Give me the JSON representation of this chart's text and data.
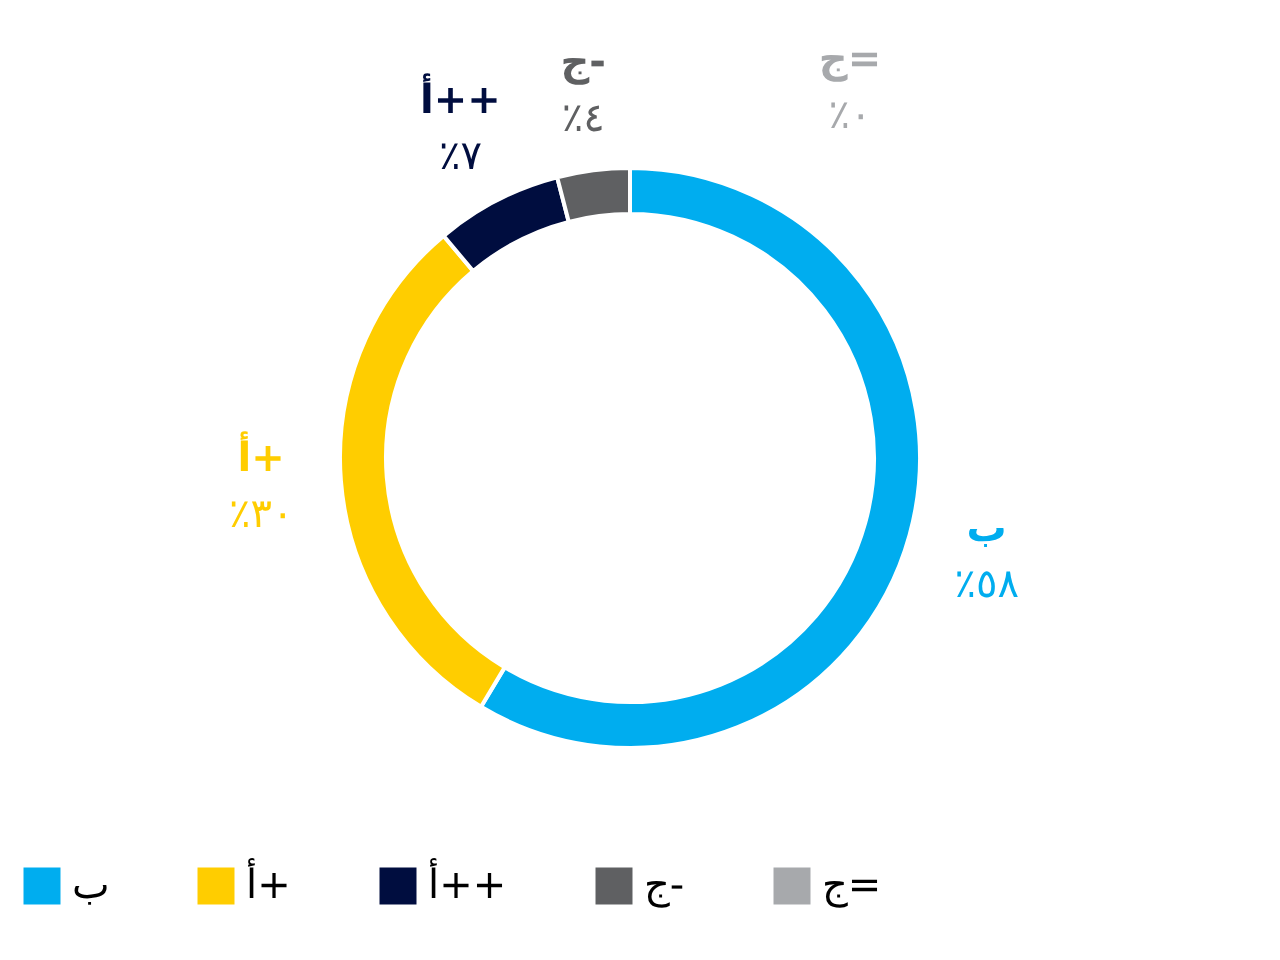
{
  "chart_data": {
    "type": "donut",
    "categories": [
      "ب",
      "أ+",
      "أ++",
      "ج-",
      "ج="
    ],
    "values": [
      58,
      30,
      7,
      4,
      0
    ],
    "colors": [
      "#00adef",
      "#ffcd00",
      "#000d3f",
      "#5f6062",
      "#a7a9ac"
    ],
    "value_labels": [
      "٪٥٨",
      "٪٣٠",
      "٪٧",
      "٪٤",
      "٪٠"
    ],
    "legend": "bottom"
  }
}
